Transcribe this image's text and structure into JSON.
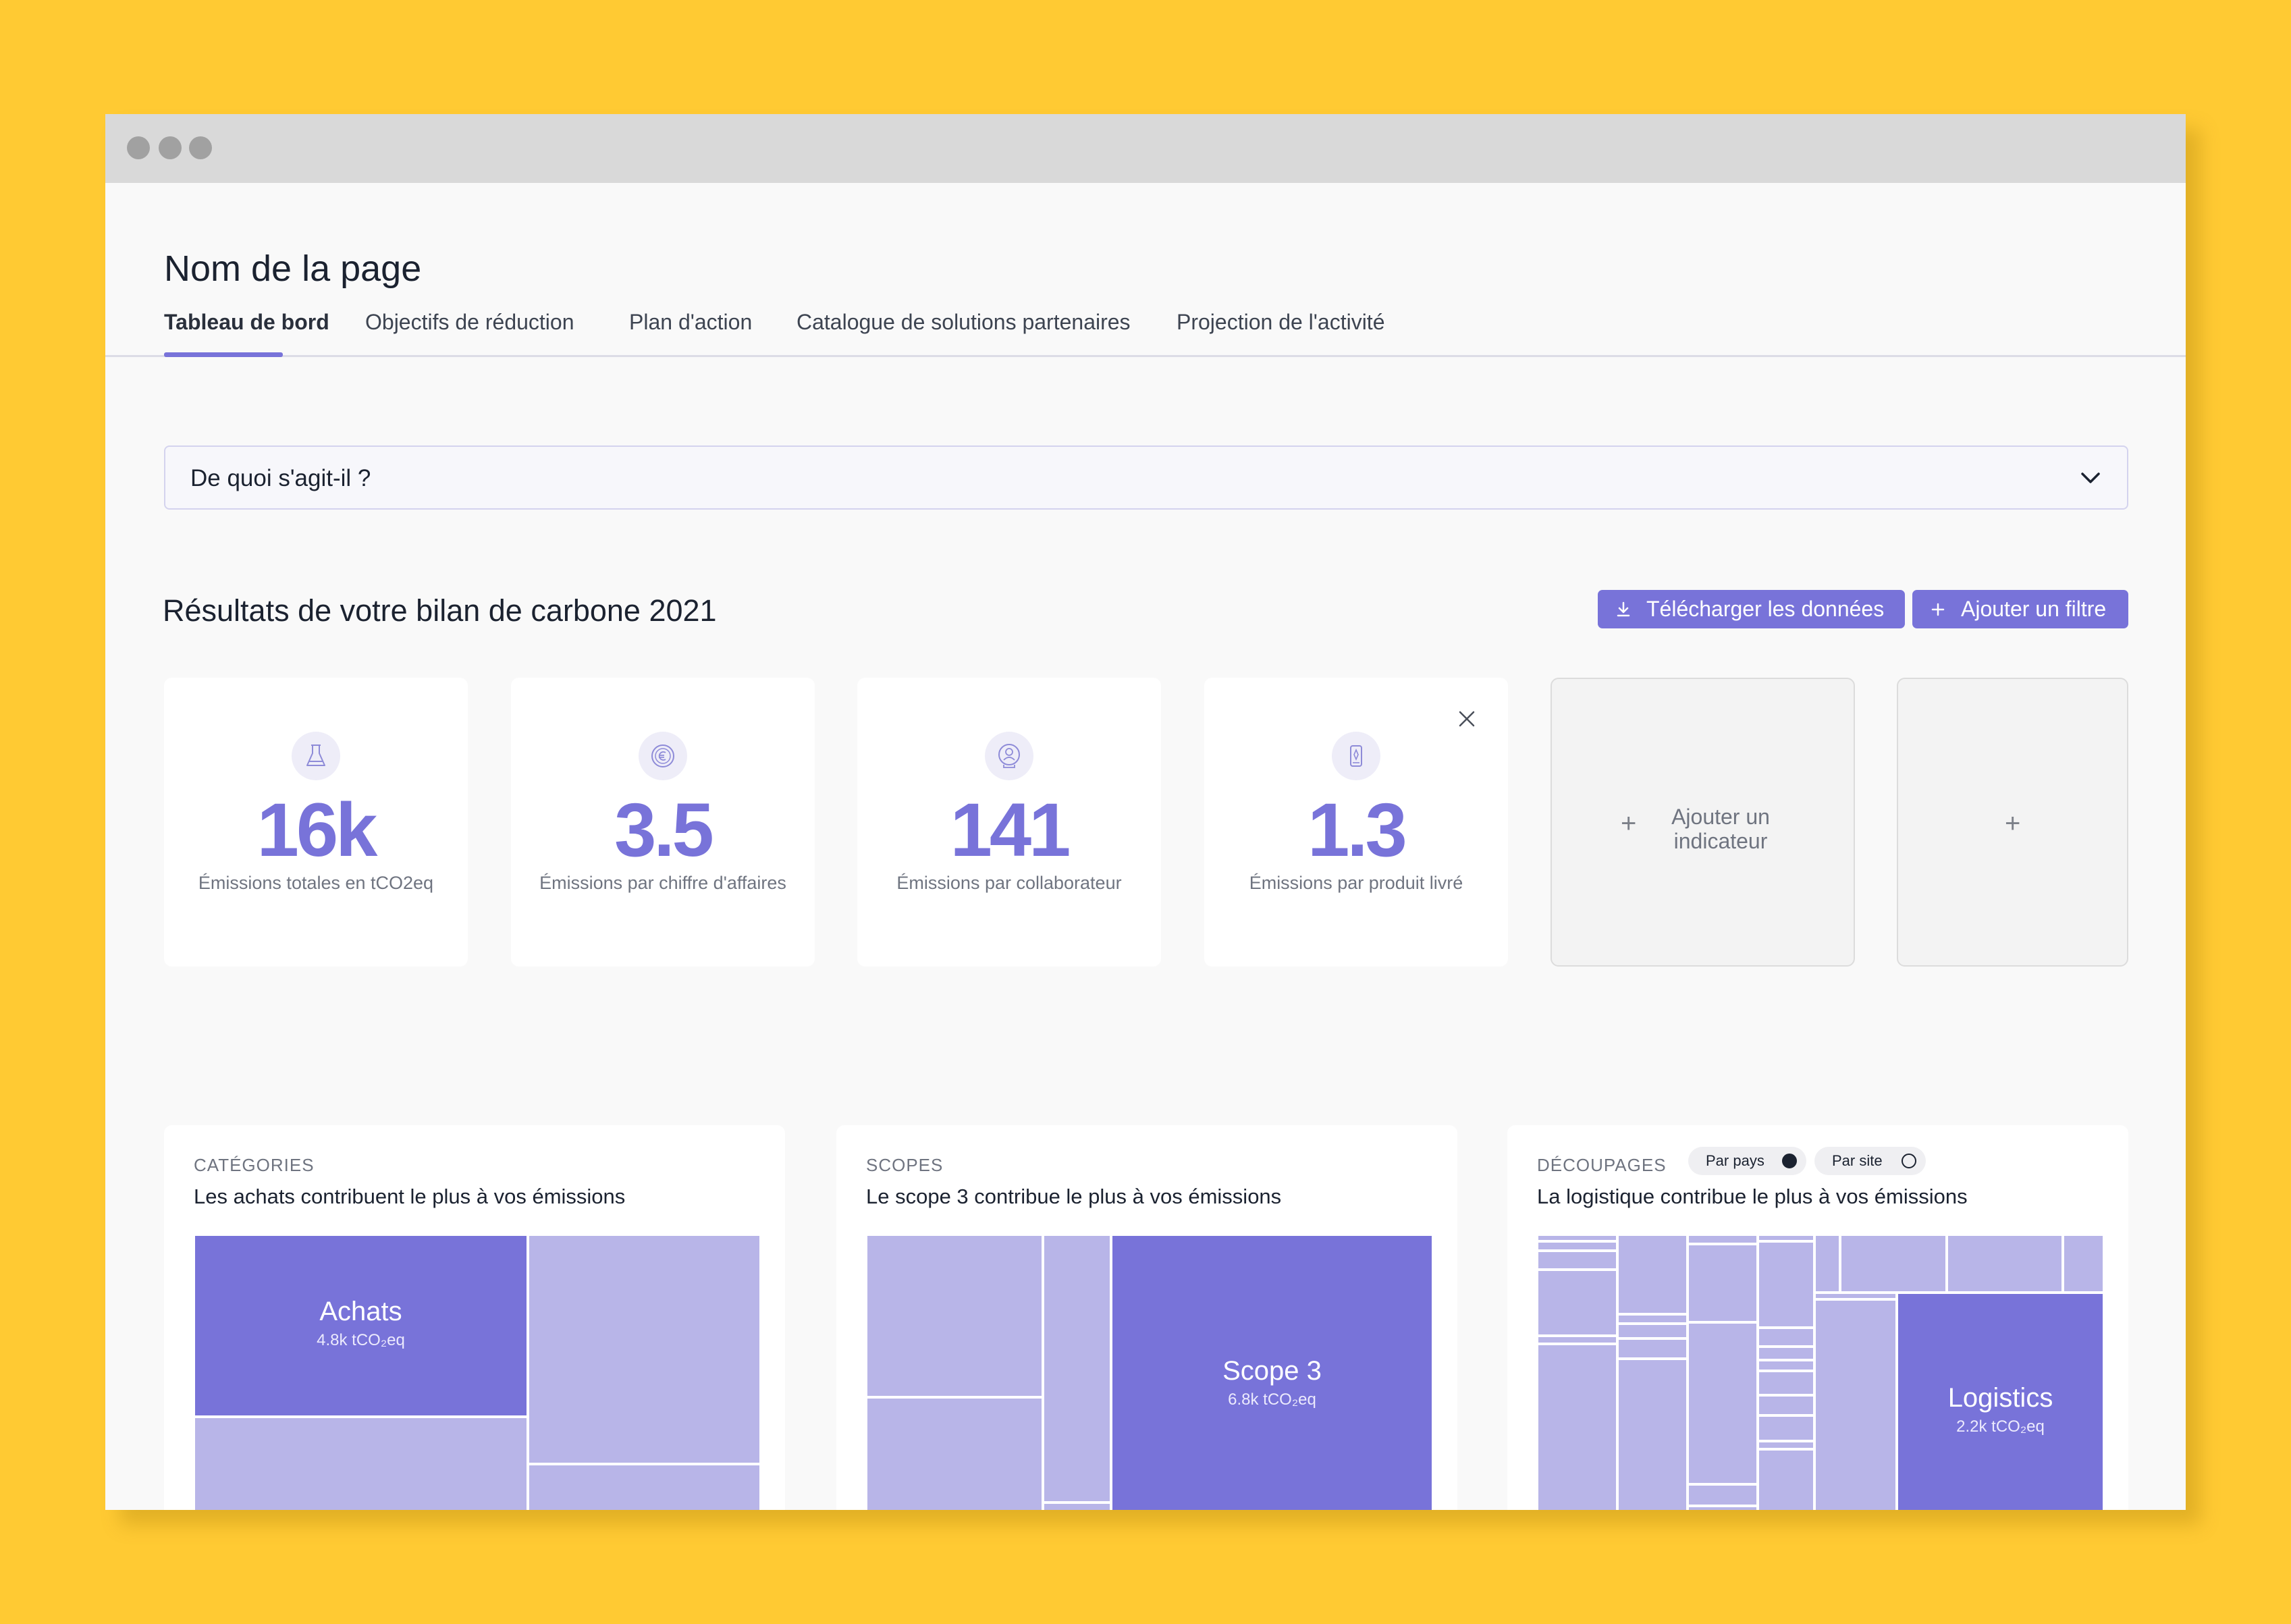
{
  "page": {
    "title": "Nom de la page",
    "tabs": [
      {
        "label": "Tableau de bord",
        "active": true
      },
      {
        "label": "Objectifs de réduction"
      },
      {
        "label": "Plan d'action"
      },
      {
        "label": "Catalogue de solutions partenaires"
      },
      {
        "label": "Projection de l'activité"
      }
    ]
  },
  "accordion": {
    "label": "De quoi s'agit-il ?"
  },
  "results": {
    "title": "Résultats de votre bilan de carbone 2021",
    "download_label": "Télécharger les données",
    "filter_label": "Ajouter un filtre"
  },
  "kpis": [
    {
      "icon": "flask-icon",
      "value": "16k",
      "label": "Émissions totales en tCO2eq"
    },
    {
      "icon": "euro-coin-icon",
      "value": "3.5",
      "label": "Émissions par chiffre d'affaires"
    },
    {
      "icon": "person-badge-icon",
      "value": "141",
      "label": "Émissions par collaborateur"
    },
    {
      "icon": "product-tag-icon",
      "value": "1.3",
      "label": "Émissions par produit livré"
    }
  ],
  "add_indicator": {
    "label": "Ajouter un indicateur",
    "plus": "+"
  },
  "panels": {
    "categories": {
      "title": "CATÉGORIES",
      "subtitle": "Les achats contribuent le plus à vos émissions",
      "main_name": "Achats",
      "main_value": "4.8k tCO₂eq"
    },
    "scopes": {
      "title": "SCOPES",
      "subtitle": "Le scope 3 contribue le plus à vos émissions",
      "main_name": "Scope 3",
      "main_value": "6.8k tCO₂eq"
    },
    "decoupages": {
      "title": "DÉCOUPAGES",
      "subtitle": "La logistique contribue le plus à vos émissions",
      "main_name": "Logistics",
      "main_value": "2.2k tCO₂eq",
      "toggle_country": "Par pays",
      "toggle_site": "Par site",
      "selected": "Par pays"
    }
  },
  "colors": {
    "accent": "#7873d9",
    "accent_light": "#b8b5e8",
    "background": "#FFCA33"
  }
}
